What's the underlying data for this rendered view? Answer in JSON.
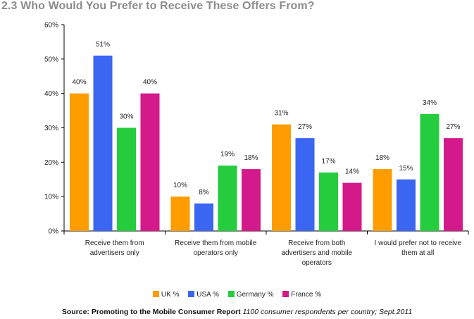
{
  "title": "2.3 Who Would You Prefer to Receive These Offers From?",
  "source": {
    "label": "Source: Promoting to the Mobile Consumer Report",
    "detail": "1100 consumer respondents per country; Sept.2011"
  },
  "colors": {
    "UK": "#ff9c00",
    "USA": "#3a66f2",
    "Germany": "#25cc3e",
    "France": "#d4198a"
  },
  "chart_data": {
    "type": "bar",
    "categories": [
      "Receive them from advertisers only",
      "Receive them from mobile operators only",
      "Receive from both advertisers and mobile operators",
      "I would prefer not to receive them at all"
    ],
    "category_lines": [
      [
        "Receive them from",
        "advertisers only"
      ],
      [
        "Receive them from mobile",
        "operators only"
      ],
      [
        "Receive from both",
        "advertisers and mobile",
        "operators"
      ],
      [
        "I would prefer not to receive",
        "them at all"
      ]
    ],
    "series": [
      {
        "name": "UK %",
        "key": "UK",
        "values": [
          40,
          10,
          31,
          18
        ]
      },
      {
        "name": "USA %",
        "key": "USA",
        "values": [
          51,
          8,
          27,
          15
        ]
      },
      {
        "name": "Germany %",
        "key": "Germany",
        "values": [
          30,
          19,
          17,
          34
        ]
      },
      {
        "name": "France %",
        "key": "France",
        "values": [
          40,
          18,
          14,
          27
        ]
      }
    ],
    "ylim": [
      0,
      60
    ],
    "yticks": [
      "0%",
      "10%",
      "20%",
      "30%",
      "40%",
      "50%",
      "60%"
    ],
    "value_suffix": "%",
    "legend_position": "bottom"
  }
}
